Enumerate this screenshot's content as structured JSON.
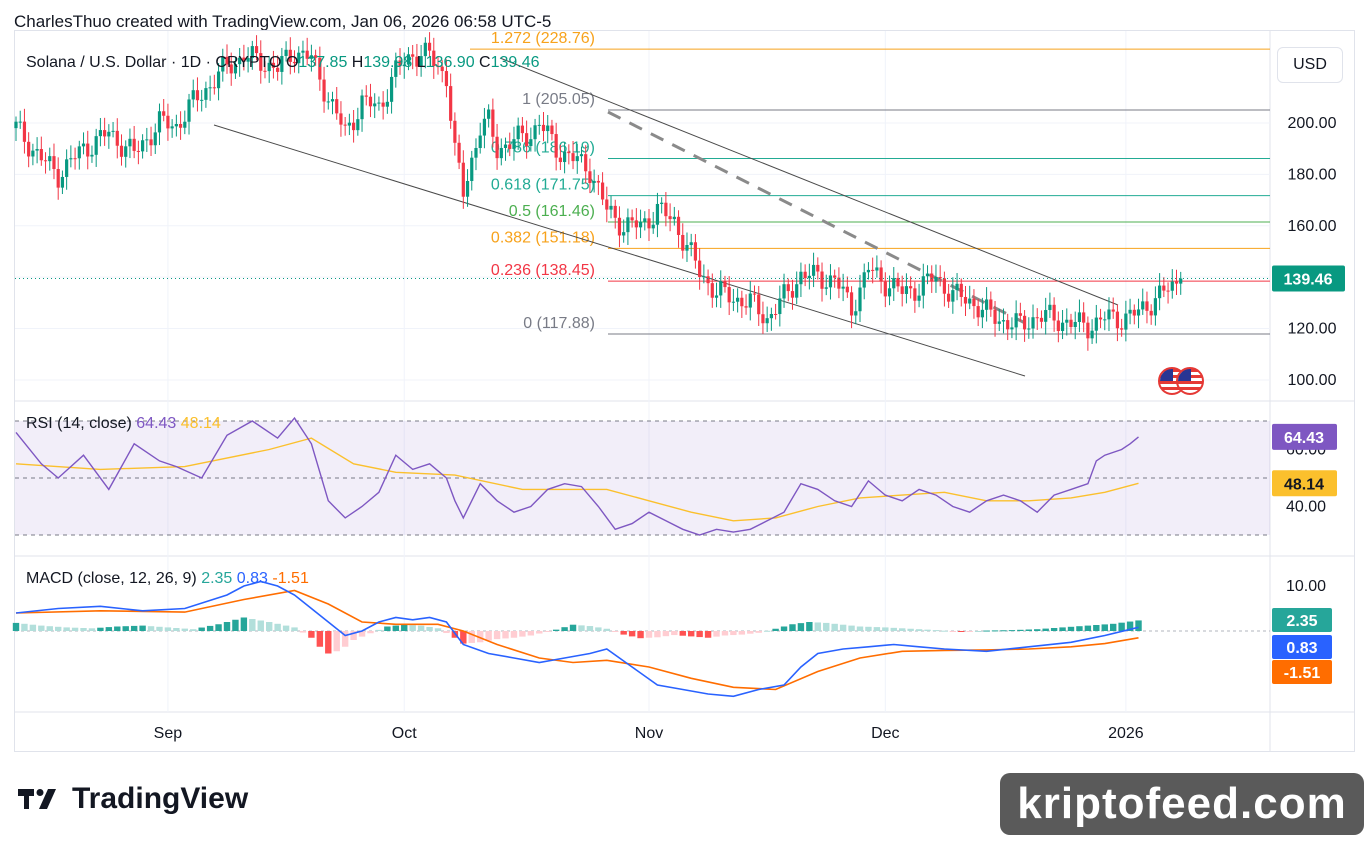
{
  "header": {
    "text": "CharlesThuo created with TradingView.com, Jan 06, 2026 06:58 UTC-5"
  },
  "legend": {
    "symbol": "Solana / U.S. Dollar · 1D · CRYPTO",
    "o_label": "O",
    "o": "137.85",
    "h_label": "H",
    "h": "139.98",
    "l_label": "L",
    "l": "136.90",
    "c_label": "C",
    "c": "139.46"
  },
  "rsi_legend": {
    "title": "RSI (14, close)",
    "value": "64.43",
    "ma": "48.14"
  },
  "macd_legend": {
    "title": "MACD (close, 12, 26, 9)",
    "hist": "2.35",
    "macd": "0.83",
    "signal": "-1.51"
  },
  "currency_button": "USD",
  "branding": {
    "logo_text": "TradingView",
    "watermark": "kriptofeed.com"
  },
  "colors": {
    "up": "#089981",
    "down": "#f23645",
    "rsi": "#7e57c2",
    "rsi_ma": "#fbc02d",
    "macd": "#2962ff",
    "signal": "#ff6d00",
    "rsi_badge": "#7e57c2"
  },
  "chart_data": {
    "type": "candlestick",
    "title": "Solana / U.S. Dollar · 1D · CRYPTO",
    "x_tick_labels": [
      "Sep",
      "Oct",
      "Nov",
      "Dec",
      "2026"
    ],
    "y_tick_labels": [
      "100.00",
      "120.00",
      "140.00",
      "160.00",
      "180.00",
      "200.00"
    ],
    "ylim": [
      94,
      231
    ],
    "last_price_label": "139.46",
    "fib_levels": [
      {
        "label": "1.272 (228.76)",
        "price": 228.76,
        "color": "#f7a21b"
      },
      {
        "label": "1 (205.05)",
        "price": 205.05,
        "color": "#787b86"
      },
      {
        "label": "0.786 (186.19)",
        "price": 186.19,
        "color": "#22ab94"
      },
      {
        "label": "0.618 (171.75)",
        "price": 171.75,
        "color": "#22ab94"
      },
      {
        "label": "0.5 (161.46)",
        "price": 161.46,
        "color": "#4caf50"
      },
      {
        "label": "0.382 (151.18)",
        "price": 151.18,
        "color": "#f7a21b"
      },
      {
        "label": "0.236 (138.45)",
        "price": 138.45,
        "color": "#f23645"
      },
      {
        "label": "0 (117.88)",
        "price": 117.88,
        "color": "#787b86"
      }
    ],
    "close_points": [
      [
        0,
        198
      ],
      [
        6,
        186
      ],
      [
        10,
        180
      ],
      [
        16,
        190
      ],
      [
        22,
        196
      ],
      [
        28,
        188
      ],
      [
        34,
        200
      ],
      [
        38,
        199
      ],
      [
        42,
        208
      ],
      [
        46,
        215
      ],
      [
        50,
        222
      ],
      [
        54,
        226
      ],
      [
        58,
        224
      ],
      [
        62,
        221
      ],
      [
        66,
        228
      ],
      [
        70,
        225
      ],
      [
        74,
        210
      ],
      [
        78,
        196
      ],
      [
        82,
        208
      ],
      [
        86,
        206
      ],
      [
        90,
        220
      ],
      [
        94,
        227
      ],
      [
        98,
        226
      ],
      [
        102,
        218
      ],
      [
        104,
        188
      ],
      [
        106,
        173
      ],
      [
        108,
        186
      ],
      [
        110,
        198
      ],
      [
        112,
        200
      ],
      [
        114,
        190
      ],
      [
        118,
        193
      ],
      [
        122,
        196
      ],
      [
        124,
        200
      ],
      [
        128,
        190
      ],
      [
        132,
        186
      ],
      [
        136,
        182
      ],
      [
        140,
        166
      ],
      [
        144,
        160
      ],
      [
        148,
        160
      ],
      [
        152,
        166
      ],
      [
        156,
        162
      ],
      [
        158,
        155
      ],
      [
        162,
        142
      ],
      [
        166,
        134
      ],
      [
        170,
        132
      ],
      [
        174,
        130
      ],
      [
        178,
        124
      ],
      [
        182,
        132
      ],
      [
        186,
        141
      ],
      [
        190,
        140
      ],
      [
        194,
        139
      ],
      [
        198,
        128
      ],
      [
        202,
        143
      ],
      [
        206,
        138
      ],
      [
        210,
        134
      ],
      [
        214,
        136
      ],
      [
        218,
        140
      ],
      [
        222,
        133
      ],
      [
        226,
        131
      ],
      [
        230,
        126
      ],
      [
        234,
        123
      ],
      [
        238,
        121
      ],
      [
        242,
        125
      ],
      [
        246,
        124
      ],
      [
        250,
        122
      ],
      [
        254,
        121
      ],
      [
        258,
        124
      ],
      [
        262,
        124
      ],
      [
        266,
        126
      ],
      [
        270,
        132
      ],
      [
        274,
        136
      ],
      [
        276,
        139.46
      ]
    ],
    "rsi_ylim": [
      25,
      80
    ],
    "rsi_tick_labels": [
      "40.00",
      "60.00"
    ],
    "rsi_bands": [
      70,
      50,
      30
    ],
    "rsi_points": [
      [
        0,
        66
      ],
      [
        6,
        55
      ],
      [
        10,
        50
      ],
      [
        16,
        58
      ],
      [
        22,
        46
      ],
      [
        28,
        62
      ],
      [
        34,
        56
      ],
      [
        38,
        54
      ],
      [
        44,
        50
      ],
      [
        50,
        65
      ],
      [
        56,
        70
      ],
      [
        62,
        64
      ],
      [
        66,
        71
      ],
      [
        70,
        62
      ],
      [
        74,
        42
      ],
      [
        78,
        36
      ],
      [
        82,
        40
      ],
      [
        86,
        45
      ],
      [
        90,
        58
      ],
      [
        94,
        53
      ],
      [
        98,
        55
      ],
      [
        102,
        50
      ],
      [
        104,
        42
      ],
      [
        106,
        36
      ],
      [
        110,
        48
      ],
      [
        114,
        42
      ],
      [
        118,
        38
      ],
      [
        122,
        40
      ],
      [
        126,
        46
      ],
      [
        130,
        48
      ],
      [
        134,
        47
      ],
      [
        138,
        40
      ],
      [
        142,
        32
      ],
      [
        146,
        34
      ],
      [
        150,
        38
      ],
      [
        154,
        35
      ],
      [
        158,
        32
      ],
      [
        162,
        30
      ],
      [
        166,
        32
      ],
      [
        170,
        31
      ],
      [
        174,
        32
      ],
      [
        178,
        35
      ],
      [
        182,
        38
      ],
      [
        186,
        48
      ],
      [
        190,
        46
      ],
      [
        194,
        42
      ],
      [
        198,
        40
      ],
      [
        202,
        49
      ],
      [
        206,
        44
      ],
      [
        210,
        42
      ],
      [
        214,
        46
      ],
      [
        218,
        44
      ],
      [
        222,
        40
      ],
      [
        226,
        38
      ],
      [
        230,
        42
      ],
      [
        234,
        44
      ],
      [
        238,
        42
      ],
      [
        242,
        38
      ],
      [
        246,
        44
      ],
      [
        250,
        46
      ],
      [
        254,
        48
      ],
      [
        256,
        56
      ],
      [
        258,
        58
      ],
      [
        262,
        60
      ],
      [
        264,
        62
      ],
      [
        266,
        64.43
      ]
    ],
    "rsi_ma_points": [
      [
        0,
        55
      ],
      [
        20,
        53
      ],
      [
        40,
        54
      ],
      [
        60,
        60
      ],
      [
        70,
        64
      ],
      [
        80,
        55
      ],
      [
        90,
        52
      ],
      [
        104,
        51
      ],
      [
        120,
        46
      ],
      [
        140,
        46
      ],
      [
        150,
        42
      ],
      [
        160,
        38
      ],
      [
        170,
        35
      ],
      [
        180,
        36
      ],
      [
        190,
        40
      ],
      [
        200,
        43
      ],
      [
        210,
        44
      ],
      [
        220,
        45
      ],
      [
        230,
        42
      ],
      [
        240,
        42
      ],
      [
        250,
        43
      ],
      [
        258,
        45
      ],
      [
        266,
        48.14
      ]
    ],
    "macd_ylim": [
      -17,
      14
    ],
    "macd_tick_labels": [
      "10.00"
    ],
    "macd_points": [
      [
        0,
        4
      ],
      [
        10,
        5
      ],
      [
        20,
        5.5
      ],
      [
        30,
        4.5
      ],
      [
        40,
        5
      ],
      [
        50,
        8
      ],
      [
        54,
        10
      ],
      [
        58,
        11
      ],
      [
        62,
        10
      ],
      [
        66,
        8
      ],
      [
        70,
        5
      ],
      [
        74,
        2
      ],
      [
        78,
        -1
      ],
      [
        82,
        0
      ],
      [
        86,
        2
      ],
      [
        90,
        3
      ],
      [
        94,
        2.5
      ],
      [
        98,
        3
      ],
      [
        102,
        2
      ],
      [
        106,
        -3
      ],
      [
        112,
        -5
      ],
      [
        118,
        -6
      ],
      [
        124,
        -7
      ],
      [
        130,
        -6
      ],
      [
        136,
        -5
      ],
      [
        140,
        -4
      ],
      [
        146,
        -8
      ],
      [
        152,
        -12
      ],
      [
        158,
        -13
      ],
      [
        164,
        -14
      ],
      [
        170,
        -14.5
      ],
      [
        176,
        -13
      ],
      [
        182,
        -12
      ],
      [
        186,
        -8
      ],
      [
        190,
        -5
      ],
      [
        196,
        -4
      ],
      [
        202,
        -3.5
      ],
      [
        208,
        -3
      ],
      [
        214,
        -3.5
      ],
      [
        220,
        -4
      ],
      [
        230,
        -4.5
      ],
      [
        240,
        -3.5
      ],
      [
        250,
        -2.5
      ],
      [
        258,
        -1
      ],
      [
        266,
        0.83
      ]
    ],
    "signal_points": [
      [
        0,
        4
      ],
      [
        20,
        4.5
      ],
      [
        40,
        4.2
      ],
      [
        54,
        7
      ],
      [
        66,
        9
      ],
      [
        74,
        6
      ],
      [
        82,
        2
      ],
      [
        90,
        1.5
      ],
      [
        100,
        1.5
      ],
      [
        106,
        0
      ],
      [
        114,
        -3
      ],
      [
        124,
        -6
      ],
      [
        132,
        -7
      ],
      [
        140,
        -6.5
      ],
      [
        150,
        -8
      ],
      [
        160,
        -10.5
      ],
      [
        170,
        -12.5
      ],
      [
        180,
        -13
      ],
      [
        190,
        -9
      ],
      [
        200,
        -6
      ],
      [
        210,
        -4.5
      ],
      [
        220,
        -4.3
      ],
      [
        230,
        -4.2
      ],
      [
        240,
        -4
      ],
      [
        250,
        -3.5
      ],
      [
        258,
        -2.8
      ],
      [
        266,
        -1.51
      ]
    ],
    "macd_hist": [
      [
        0,
        1.8
      ],
      [
        6,
        1.2
      ],
      [
        12,
        0.8
      ],
      [
        18,
        0.6
      ],
      [
        24,
        1.0
      ],
      [
        30,
        1.2
      ],
      [
        36,
        0.8
      ],
      [
        42,
        0.4
      ],
      [
        48,
        1.5
      ],
      [
        54,
        3.0
      ],
      [
        60,
        2.0
      ],
      [
        66,
        0.8
      ],
      [
        70,
        -1.5
      ],
      [
        72,
        -3.5
      ],
      [
        74,
        -5.0
      ],
      [
        76,
        -4.5
      ],
      [
        78,
        -3.5
      ],
      [
        80,
        -2.0
      ],
      [
        84,
        -0.5
      ],
      [
        88,
        1.0
      ],
      [
        92,
        1.4
      ],
      [
        96,
        1.2
      ],
      [
        100,
        0.6
      ],
      [
        104,
        -1.5
      ],
      [
        106,
        -2.8
      ],
      [
        110,
        -2.5
      ],
      [
        114,
        -1.8
      ],
      [
        118,
        -1.5
      ],
      [
        122,
        -1.0
      ],
      [
        128,
        0.3
      ],
      [
        132,
        1.4
      ],
      [
        136,
        1.1
      ],
      [
        140,
        0.5
      ],
      [
        144,
        -0.8
      ],
      [
        148,
        -1.6
      ],
      [
        152,
        -1.4
      ],
      [
        156,
        -0.9
      ],
      [
        160,
        -1.2
      ],
      [
        164,
        -1.5
      ],
      [
        168,
        -1.0
      ],
      [
        172,
        -0.8
      ],
      [
        176,
        -0.4
      ],
      [
        180,
        0.5
      ],
      [
        184,
        1.5
      ],
      [
        188,
        2.0
      ],
      [
        192,
        1.8
      ],
      [
        196,
        1.4
      ],
      [
        200,
        1.0
      ],
      [
        206,
        0.8
      ],
      [
        212,
        0.5
      ],
      [
        218,
        0.2
      ],
      [
        224,
        -0.2
      ],
      [
        230,
        0.1
      ],
      [
        236,
        0.2
      ],
      [
        242,
        0.4
      ],
      [
        248,
        0.8
      ],
      [
        254,
        1.2
      ],
      [
        260,
        1.6
      ],
      [
        266,
        2.35
      ]
    ]
  }
}
